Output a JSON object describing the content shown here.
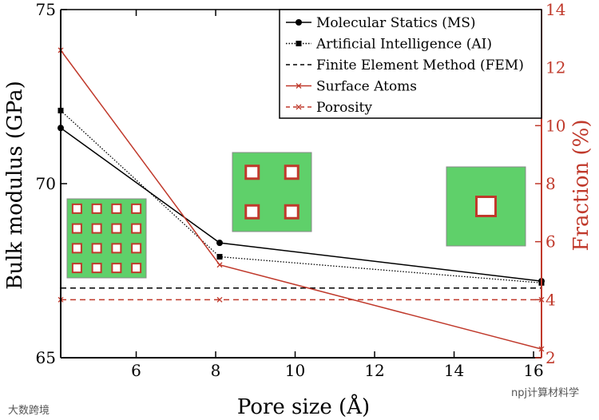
{
  "chart_data": {
    "type": "line",
    "xlabel": "Pore size (Å)",
    "ylabel": "Bulk modulus (GPa)",
    "y2label": "Fraction (%)",
    "xlim": [
      4.1,
      16.2
    ],
    "ylim": [
      65,
      75
    ],
    "y2lim": [
      2,
      14
    ],
    "xticks": [
      6,
      8,
      10,
      12,
      14,
      16
    ],
    "yticks": [
      65,
      70,
      75
    ],
    "y2ticks": [
      2,
      4,
      6,
      8,
      10,
      12,
      14
    ],
    "x": [
      4.1,
      8.1,
      16.2
    ],
    "series": [
      {
        "name": "Molecular Statics (MS)",
        "axis": "left",
        "color": "#000000",
        "style": "solid",
        "marker": "circle",
        "values": [
          71.6,
          68.3,
          67.2
        ]
      },
      {
        "name": "Artificial Intelligence (AI)",
        "axis": "left",
        "color": "#000000",
        "style": "dotted",
        "marker": "square",
        "values": [
          72.1,
          67.9,
          67.15
        ]
      },
      {
        "name": "Finite Element Method (FEM)",
        "axis": "left",
        "color": "#000000",
        "style": "dashed",
        "marker": "none",
        "values": [
          67.0,
          67.0,
          67.0
        ]
      },
      {
        "name": "Surface Atoms",
        "axis": "right",
        "color": "#c0392b",
        "style": "solid",
        "marker": "x",
        "values": [
          12.6,
          5.2,
          2.3
        ]
      },
      {
        "name": "Porosity",
        "axis": "right",
        "color": "#c0392b",
        "style": "dashed",
        "marker": "x",
        "values": [
          4.0,
          4.0,
          4.0
        ]
      }
    ],
    "insets": [
      {
        "grid": 4
      },
      {
        "grid": 2
      },
      {
        "grid": 1
      }
    ],
    "legend_position": "top-right"
  },
  "watermark": {
    "left": "大数跨境",
    "right": "npj计算材料学"
  }
}
